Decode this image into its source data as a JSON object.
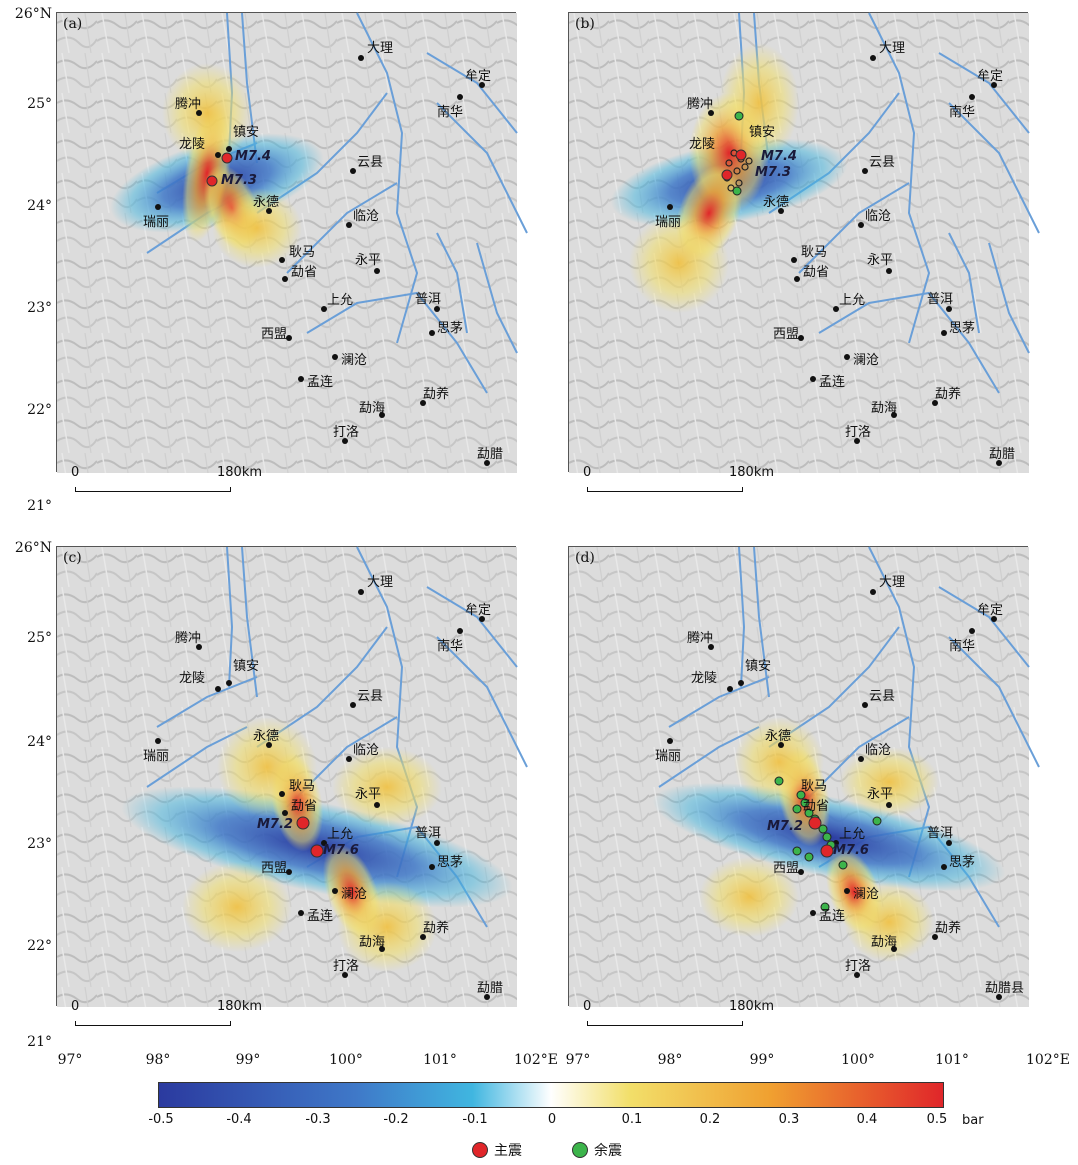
{
  "axes": {
    "lat_labels": [
      "26°N",
      "25°",
      "24°",
      "23°",
      "22°",
      "21°"
    ],
    "lon_labels": [
      "97°",
      "98°",
      "99°",
      "100°",
      "101°",
      "102°E"
    ]
  },
  "panels": [
    {
      "letter": "(a)",
      "scale": {
        "zero": "0",
        "dist": "180km"
      },
      "events": [
        {
          "label": "M7.4"
        },
        {
          "label": "M7.3"
        }
      ]
    },
    {
      "letter": "(b)",
      "scale": {
        "zero": "0",
        "dist": "180km"
      },
      "events": [
        {
          "label": "M7.4"
        },
        {
          "label": "M7.3"
        }
      ]
    },
    {
      "letter": "(c)",
      "scale": {
        "zero": "0",
        "dist": "180km"
      },
      "events": [
        {
          "label": "M7.2"
        },
        {
          "label": "M7.6"
        }
      ]
    },
    {
      "letter": "(d)",
      "scale": {
        "zero": "0",
        "dist": "180km"
      },
      "events": [
        {
          "label": "M7.2"
        },
        {
          "label": "M7.6"
        }
      ]
    }
  ],
  "places": {
    "dali": "大理",
    "fuding": "牟定",
    "nanhua": "南华",
    "tengchong": "腾冲",
    "longling": "龙陵",
    "zhenan": "镇安",
    "yunxian": "云县",
    "ruili": "瑞丽",
    "yongde": "永德",
    "lincang": "临沧",
    "gengma": "耿马",
    "mengsheng": "勐省",
    "yongping": "永平",
    "shangyun": "上允",
    "puer": "普洱",
    "simao": "思茅",
    "ximeng": "西盟",
    "lancang": "澜沧",
    "menglian": "孟连",
    "mengyang": "勐养",
    "menghai": "勐海",
    "daluo": "打洛",
    "mengla": "勐腊",
    "menglaxian": "勐腊县"
  },
  "colorbar": {
    "ticks": [
      "-0.5",
      "-0.4",
      "-0.3",
      "-0.2",
      "-0.1",
      "0",
      "0.1",
      "0.2",
      "0.3",
      "0.4",
      "0.5"
    ],
    "unit": "bar",
    "range": [
      -0.5,
      0.5
    ],
    "colors": [
      "#2b3a9f",
      "#3f78c8",
      "#40b6e0",
      "#ffffff",
      "#f2df6a",
      "#f0a030",
      "#e0262a"
    ]
  },
  "legend": {
    "mainshock": {
      "label": "主震",
      "color": "#e0262a"
    },
    "aftershock": {
      "label": "余震",
      "color": "#3cb44b"
    }
  }
}
